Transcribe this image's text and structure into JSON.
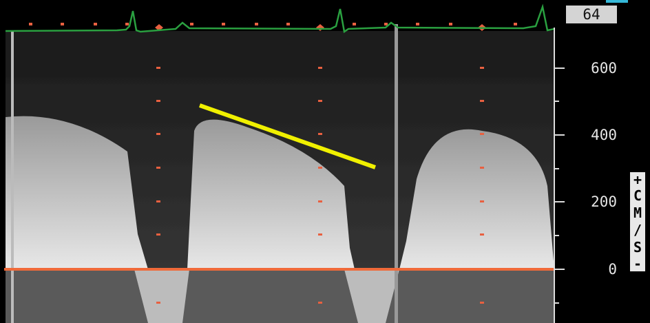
{
  "header": {
    "value_box": "64"
  },
  "scale": {
    "ticks": [
      "600",
      "400",
      "200",
      "0"
    ],
    "plus": "+",
    "unit": "CM/S",
    "minus": "-"
  }
}
